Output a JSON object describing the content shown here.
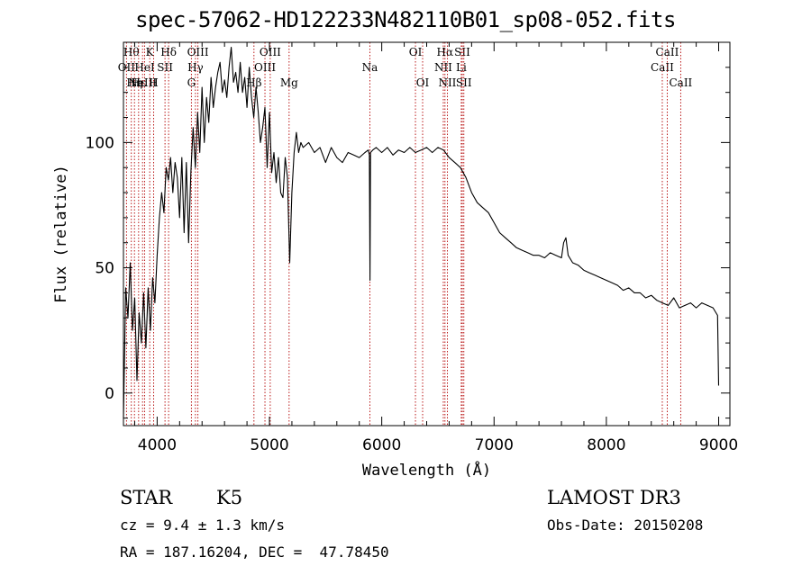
{
  "title": "spec-57062-HD122233N482110B01_sp08-052.fits",
  "info": {
    "object_class": "STAR",
    "subclass": "K5",
    "survey": "LAMOST DR3",
    "cz": "cz = 9.4 ± 1.3 km/s",
    "obs_date": "Obs-Date: 20150208",
    "coords": "RA = 187.16204, DEC =  47.78450"
  },
  "colors": {
    "spectrum": "#000000",
    "line_marker": "#b30000",
    "axis": "#000000"
  },
  "chart_data": {
    "type": "line",
    "xlabel": "Wavelength (Å)",
    "ylabel": "Flux (relative)",
    "xlim": [
      3700,
      9100
    ],
    "ylim": [
      -13,
      140
    ],
    "xticks": [
      4000,
      5000,
      6000,
      7000,
      8000,
      9000
    ],
    "yticks": [
      0,
      50,
      100
    ],
    "grid": false,
    "series": [
      {
        "x": [
          3700,
          3720,
          3740,
          3760,
          3780,
          3800,
          3820,
          3840,
          3860,
          3880,
          3900,
          3920,
          3940,
          3960,
          3980,
          4000,
          4020,
          4040,
          4060,
          4080,
          4100,
          4120,
          4140,
          4160,
          4180,
          4200,
          4220,
          4240,
          4260,
          4280,
          4300,
          4320,
          4340,
          4360,
          4380,
          4400,
          4420,
          4440,
          4460,
          4480,
          4500,
          4520,
          4540,
          4560,
          4580,
          4600,
          4620,
          4640,
          4660,
          4680,
          4700,
          4720,
          4740,
          4760,
          4780,
          4800,
          4820,
          4840,
          4860,
          4880,
          4900,
          4920,
          4940,
          4960,
          4980,
          5000,
          5020,
          5040,
          5060,
          5080,
          5100,
          5120,
          5140,
          5160,
          5180,
          5200,
          5220,
          5240,
          5260,
          5280,
          5300,
          5350,
          5400,
          5450,
          5500,
          5550,
          5600,
          5650,
          5700,
          5750,
          5800,
          5850,
          5880,
          5890,
          5895,
          5900,
          5920,
          5950,
          6000,
          6050,
          6100,
          6150,
          6200,
          6250,
          6300,
          6350,
          6400,
          6450,
          6500,
          6550,
          6600,
          6650,
          6700,
          6750,
          6800,
          6850,
          6900,
          6950,
          7000,
          7050,
          7100,
          7150,
          7200,
          7250,
          7300,
          7350,
          7400,
          7450,
          7500,
          7550,
          7600,
          7620,
          7640,
          7660,
          7700,
          7750,
          7800,
          7850,
          7900,
          7950,
          8000,
          8050,
          8100,
          8150,
          8200,
          8250,
          8300,
          8350,
          8400,
          8450,
          8500,
          8550,
          8600,
          8650,
          8700,
          8750,
          8800,
          8850,
          8900,
          8950,
          8990,
          9000
        ],
        "y": [
          -10,
          42,
          30,
          52,
          25,
          38,
          5,
          32,
          20,
          40,
          18,
          42,
          25,
          46,
          36,
          55,
          70,
          80,
          72,
          90,
          85,
          94,
          80,
          92,
          86,
          70,
          94,
          64,
          92,
          60,
          88,
          106,
          90,
          112,
          96,
          122,
          100,
          118,
          108,
          126,
          114,
          122,
          128,
          132,
          120,
          125,
          118,
          130,
          138,
          124,
          128,
          120,
          132,
          120,
          126,
          114,
          130,
          118,
          110,
          122,
          112,
          100,
          106,
          114,
          90,
          112,
          88,
          96,
          84,
          94,
          80,
          78,
          94,
          86,
          52,
          80,
          96,
          104,
          96,
          100,
          98,
          100,
          96,
          98,
          92,
          98,
          94,
          92,
          96,
          95,
          94,
          96,
          97,
          95,
          45,
          96,
          97,
          98,
          96,
          98,
          95,
          97,
          96,
          98,
          96,
          97,
          98,
          96,
          98,
          97,
          94,
          92,
          90,
          86,
          80,
          76,
          74,
          72,
          68,
          64,
          62,
          60,
          58,
          57,
          56,
          55,
          55,
          54,
          56,
          55,
          54,
          60,
          62,
          55,
          52,
          51,
          49,
          48,
          47,
          46,
          45,
          44,
          43,
          41,
          42,
          40,
          40,
          38,
          39,
          37,
          36,
          35,
          38,
          34,
          35,
          36,
          34,
          36,
          35,
          34,
          31,
          3
        ]
      }
    ],
    "line_markers": [
      {
        "x": 3727,
        "label": "OII",
        "row": 2
      },
      {
        "x": 3770,
        "label": "Hθ",
        "row": 1
      },
      {
        "x": 3798,
        "label": "Hη",
        "row": 3
      },
      {
        "x": 3835,
        "label": "Hε",
        "row": 3
      },
      {
        "x": 3870,
        "label": "NeIII",
        "row": 3
      },
      {
        "x": 3889,
        "label": "HeI",
        "row": 2
      },
      {
        "x": 3934,
        "label": "K",
        "row": 1
      },
      {
        "x": 3969,
        "label": "H",
        "row": 3
      },
      {
        "x": 4070,
        "label": "SII",
        "row": 2
      },
      {
        "x": 4102,
        "label": "Hδ",
        "row": 1
      },
      {
        "x": 4305,
        "label": "G",
        "row": 3
      },
      {
        "x": 4341,
        "label": "Hγ",
        "row": 2
      },
      {
        "x": 4363,
        "label": "OIII",
        "row": 1
      },
      {
        "x": 4862,
        "label": "Hβ",
        "row": 3
      },
      {
        "x": 4960,
        "label": "OIII",
        "row": 2
      },
      {
        "x": 5007,
        "label": "OIII",
        "row": 1
      },
      {
        "x": 5175,
        "label": "Mg",
        "row": 3
      },
      {
        "x": 5894,
        "label": "Na",
        "row": 2
      },
      {
        "x": 6300,
        "label": "OI",
        "row": 1
      },
      {
        "x": 6364,
        "label": "OI",
        "row": 3
      },
      {
        "x": 6548,
        "label": "NII",
        "row": 2
      },
      {
        "x": 6563,
        "label": "Hα",
        "row": 1
      },
      {
        "x": 6584,
        "label": "NII",
        "row": 3
      },
      {
        "x": 6708,
        "label": "Li",
        "row": 2
      },
      {
        "x": 6717,
        "label": "SII",
        "row": 1
      },
      {
        "x": 6731,
        "label": "SII",
        "row": 3
      },
      {
        "x": 8498,
        "label": "CaII",
        "row": 2
      },
      {
        "x": 8542,
        "label": "CaII",
        "row": 1
      },
      {
        "x": 8662,
        "label": "CaII",
        "row": 3
      }
    ]
  }
}
